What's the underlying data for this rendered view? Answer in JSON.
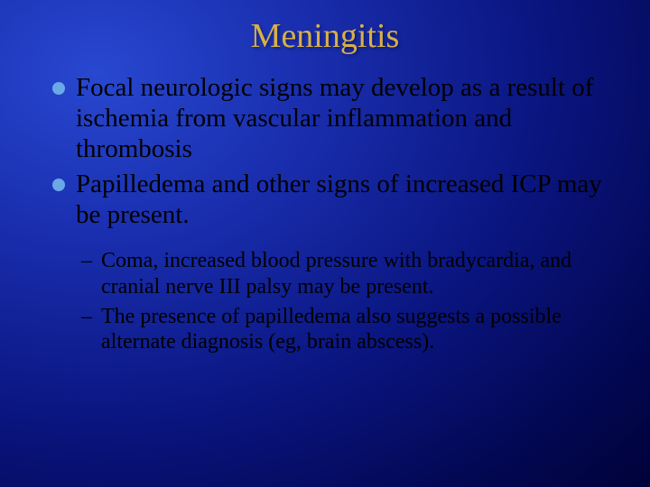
{
  "slide": {
    "title": "Meningitis",
    "title_color": "#d8b048",
    "title_fontsize": 38,
    "bullets": [
      "Focal neurologic signs may develop as a result of ischemia from vascular inflammation and thrombosis",
      "Papilledema and other signs of increased ICP may be present."
    ],
    "bullet_marker_color": "#6aa8e8",
    "bullet_fontsize": 29,
    "sub_bullets": [
      "Coma, increased blood pressure with bradycardia, and cranial nerve III palsy may be present.",
      "The presence of papilledema also suggests a possible alternate diagnosis (eg, brain abscess)."
    ],
    "sub_bullet_fontsize": 24,
    "text_color": "#000000",
    "background": {
      "type": "radial-gradient",
      "center_color": "#2848d0",
      "mid_color": "#0a1580",
      "edge_color": "#000030"
    }
  }
}
